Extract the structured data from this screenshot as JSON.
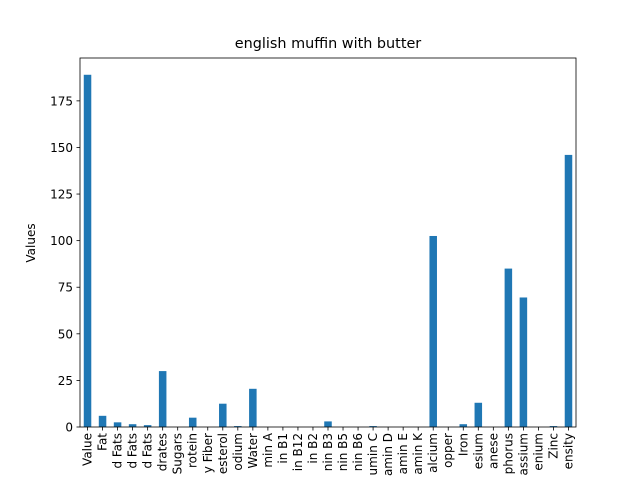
{
  "chart_data": {
    "type": "bar",
    "title": "english muffin with butter",
    "xlabel": "",
    "ylabel": "Values",
    "ylim": [
      0,
      198
    ],
    "yticks": [
      0,
      25,
      50,
      75,
      100,
      125,
      150,
      175
    ],
    "grid": false,
    "legend": "none",
    "bar_color": "#1f77b4",
    "categories": [
      "Value",
      "Fat",
      "d Fats",
      "d Fats",
      "d Fats",
      "drates",
      "Sugars",
      "rotein",
      "y Fiber",
      "esterol",
      "odium",
      "Water",
      "min A",
      "in B1",
      "in B12",
      "in B2",
      "nin B3",
      "nin B5",
      "nin B6",
      "umin C",
      "amin D",
      "amin E",
      "amin K",
      "alcium",
      "opper",
      "Iron",
      "esium",
      "anese",
      "phorus",
      "assium",
      "enium",
      "Zinc",
      "ensity"
    ],
    "values": [
      189,
      6,
      2.5,
      1.5,
      1,
      30,
      0,
      5,
      0,
      12.5,
      0.5,
      20.5,
      0,
      0,
      0,
      0,
      3,
      0,
      0,
      0.5,
      0,
      0,
      0,
      102.5,
      0,
      1.5,
      13,
      0,
      85,
      69.5,
      0,
      0.5,
      146
    ]
  }
}
